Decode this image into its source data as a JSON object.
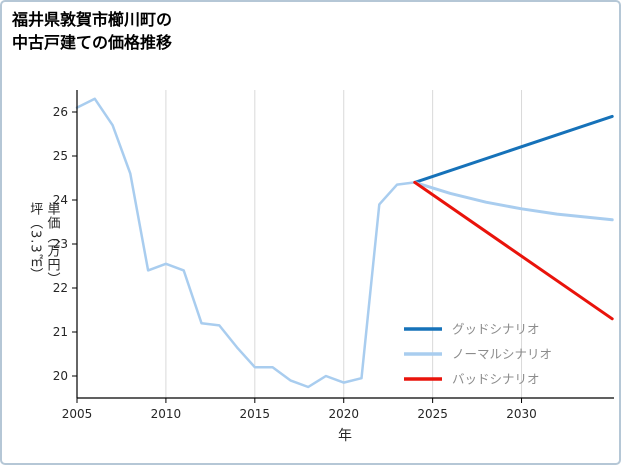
{
  "title_lines": [
    "福井県敦賀市櫛川町の",
    "中古戸建ての価格推移"
  ],
  "chart_data": {
    "type": "line",
    "title": "福井県敦賀市櫛川町の中古戸建ての価格推移",
    "xlabel": "年",
    "ylabel": "坪（3.3㎡）単価（万円）",
    "ylabel_lines": [
      "坪（3.3㎡）",
      "単価（万円）"
    ],
    "xlim": [
      2005,
      2035.2
    ],
    "ylim": [
      19.5,
      26.5
    ],
    "x_ticks": [
      2005,
      2010,
      2015,
      2020,
      2025,
      2030
    ],
    "y_ticks": [
      20,
      21,
      22,
      23,
      24,
      25,
      26
    ],
    "grid": "vertical",
    "legend_position": "lower right",
    "colors": {
      "grid": "#d9d9d9",
      "axis": "#000000",
      "tick_label": "#262626",
      "legend_text": "#8c8c8c",
      "frame_border": "#b5c7d6",
      "good": "#1672b9",
      "normal": "#a9cdef",
      "bad": "#e9130b"
    },
    "series": [
      {
        "id": "actual-price-history",
        "color": "#a9cdef",
        "width": 2.5,
        "in_legend": false,
        "points": [
          [
            2005,
            26.1
          ],
          [
            2006,
            26.3
          ],
          [
            2007,
            25.7
          ],
          [
            2008,
            24.6
          ],
          [
            2009,
            22.4
          ],
          [
            2010,
            22.55
          ],
          [
            2011,
            22.4
          ],
          [
            2012,
            21.2
          ],
          [
            2013,
            21.15
          ],
          [
            2014,
            20.65
          ],
          [
            2015,
            20.2
          ],
          [
            2016,
            20.2
          ],
          [
            2017,
            19.9
          ],
          [
            2018,
            19.75
          ],
          [
            2019,
            20.0
          ],
          [
            2020,
            19.85
          ],
          [
            2021,
            19.95
          ],
          [
            2022,
            23.9
          ],
          [
            2023,
            24.35
          ],
          [
            2024,
            24.4
          ]
        ]
      },
      {
        "id": "good-scenario",
        "name": "グッドシナリオ",
        "color": "#1672b9",
        "width": 3,
        "in_legend": true,
        "points": [
          [
            2024,
            24.4
          ],
          [
            2035.1,
            25.9
          ]
        ]
      },
      {
        "id": "normal-scenario",
        "name": "ノーマルシナリオ",
        "color": "#a9cdef",
        "width": 3,
        "in_legend": true,
        "points": [
          [
            2024,
            24.4
          ],
          [
            2026,
            24.15
          ],
          [
            2028,
            23.95
          ],
          [
            2030,
            23.8
          ],
          [
            2032,
            23.68
          ],
          [
            2035.1,
            23.55
          ]
        ]
      },
      {
        "id": "bad-scenario",
        "name": "バッドシナリオ",
        "color": "#e9130b",
        "width": 3,
        "in_legend": true,
        "points": [
          [
            2024,
            24.4
          ],
          [
            2035.1,
            21.3
          ]
        ]
      }
    ]
  }
}
